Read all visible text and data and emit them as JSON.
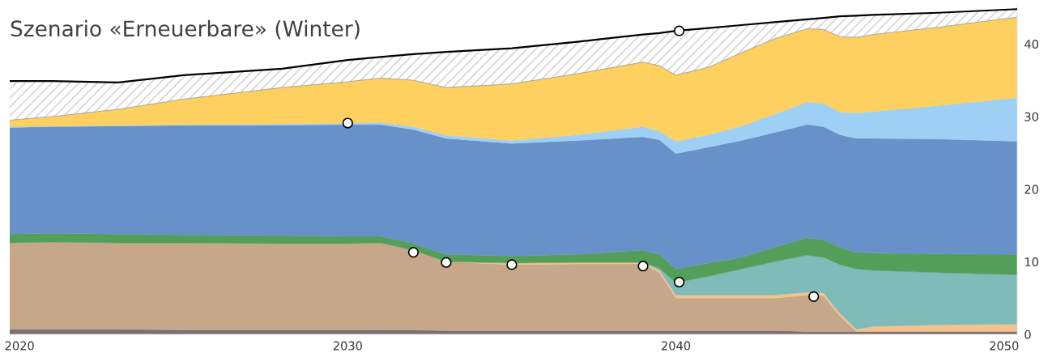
{
  "chart_data": {
    "type": "area",
    "title": "Szenario «Erneuerbare» (Winter)",
    "stacked": true,
    "x": [
      2019.7,
      2021,
      2023,
      2025,
      2028,
      2030,
      2031,
      2032,
      2033,
      2035,
      2037,
      2039,
      2039.5,
      2040,
      2041,
      2042,
      2043,
      2044,
      2044.5,
      2045,
      2045.5,
      2046,
      2048,
      2050.4
    ],
    "xlim": [
      2019.7,
      2050.4
    ],
    "xticks": [
      2020,
      2030,
      2040,
      2050
    ],
    "ylim": [
      0,
      45.5
    ],
    "yticks": [
      0,
      10,
      20,
      30,
      40
    ],
    "grid": false,
    "legend": false,
    "series": [
      {
        "color": "#7b6f72",
        "values": [
          0.7,
          0.7,
          0.7,
          0.6,
          0.6,
          0.6,
          0.6,
          0.6,
          0.5,
          0.5,
          0.5,
          0.5,
          0.5,
          0.5,
          0.5,
          0.5,
          0.5,
          0.4,
          0.4,
          0.4,
          0.4,
          0.4,
          0.4,
          0.4
        ]
      },
      {
        "color": "#c6a78a",
        "values": [
          11.9,
          12.0,
          11.9,
          12.0,
          11.9,
          11.9,
          12.0,
          11.0,
          9.5,
          9.1,
          9.2,
          9.2,
          8.0,
          4.5,
          4.5,
          4.5,
          4.5,
          5.0,
          4.9,
          2.1,
          0,
          null,
          null,
          null
        ]
      },
      {
        "color": "#f5c28e",
        "values": [
          null,
          null,
          null,
          null,
          null,
          null,
          null,
          null,
          0,
          0.2,
          0.2,
          0.2,
          0.3,
          0.4,
          0.4,
          0.4,
          0.4,
          0.4,
          0.4,
          0.4,
          0.3,
          0.7,
          0.9,
          1.0
        ]
      },
      {
        "color": "#7fbbb9",
        "values": [
          null,
          null,
          null,
          null,
          null,
          null,
          null,
          null,
          null,
          null,
          null,
          0,
          0.3,
          1.7,
          2.6,
          3.6,
          4.6,
          5.1,
          4.9,
          6.7,
          8.3,
          7.7,
          7.2,
          6.8
        ]
      },
      {
        "color": "#539f5a",
        "values": [
          1.2,
          1.2,
          1.2,
          1.1,
          1.1,
          1.0,
          0.9,
          0.9,
          1.0,
          1.0,
          1.1,
          1.7,
          1.9,
          1.9,
          1.8,
          1.6,
          2.0,
          2.4,
          2.4,
          2.4,
          2.3,
          2.4,
          2.6,
          2.8
        ]
      },
      {
        "color": "#6791c8",
        "values": [
          14.7,
          14.7,
          14.9,
          15.1,
          15.2,
          15.4,
          15.4,
          15.7,
          16.0,
          15.5,
          15.7,
          15.6,
          15.8,
          15.9,
          16.0,
          16.1,
          15.8,
          15.6,
          15.6,
          15.5,
          15.7,
          15.8,
          15.8,
          15.6
        ]
      },
      {
        "color": "#9ecff5",
        "values": [
          0.1,
          0.1,
          0.1,
          0.1,
          0.2,
          0.2,
          0.3,
          0.4,
          0.4,
          0.4,
          0.8,
          1.4,
          1.2,
          1.7,
          1.7,
          2.0,
          2.5,
          3.1,
          3.2,
          3.1,
          3.5,
          3.7,
          4.6,
          6.0
        ]
      },
      {
        "color": "#fdd05f",
        "values": [
          0.9,
          1.3,
          2.2,
          3.5,
          5.0,
          5.7,
          6.1,
          6.4,
          6.6,
          7.8,
          8.4,
          8.9,
          9.0,
          9.1,
          9.3,
          10.1,
          10.4,
          10.1,
          10.2,
          10.4,
          10.4,
          10.6,
          10.8,
          11.1
        ]
      },
      {
        "color": "#cccccc",
        "values": [
          5.4,
          4.9,
          3.7,
          3.3,
          2.6,
          3.0,
          2.9,
          3.6,
          4.9,
          4.9,
          4.4,
          3.8,
          4.5,
          6.1,
          5.4,
          3.8,
          2.3,
          1.3,
          1.6,
          2.8,
          3.0,
          2.7,
          2.0,
          1.1
        ]
      },
      {
        "type": "scatter",
        "color": "#ffffff",
        "marker": "circle",
        "x": [
          2030,
          2032,
          2033,
          2035,
          2039,
          2040.1,
          2044.2,
          2040.1
        ],
        "values": [
          29.1,
          11.3,
          9.9,
          9.6,
          9.4,
          7.2,
          5.2,
          41.8
        ]
      }
    ]
  }
}
